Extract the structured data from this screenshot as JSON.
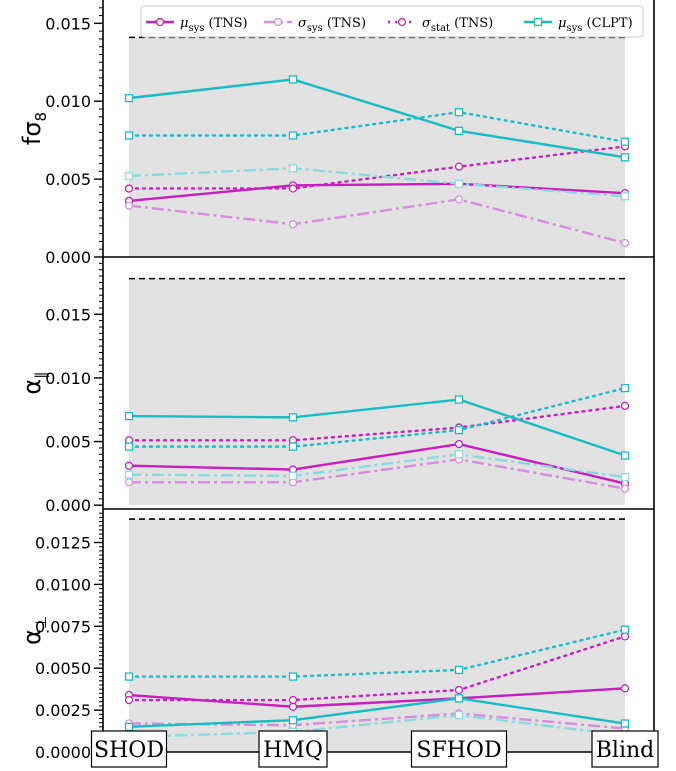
{
  "chart_data": {
    "type": "line",
    "categories": [
      "SHOD",
      "HMQ",
      "SFHOD",
      "Blind"
    ],
    "legend": [
      {
        "key": "mu_sys_tns",
        "symbol": "μ",
        "sub": "sys",
        "suffix": " (TNS)",
        "color": "#c71dc1",
        "dash": "solid",
        "alpha": 1.0
      },
      {
        "key": "sigma_sys_tns",
        "symbol": "σ",
        "sub": "sys",
        "suffix": " (TNS)",
        "color": "#d48edb",
        "dash": "dashdot",
        "alpha": 1.0
      },
      {
        "key": "sigma_stat_tns",
        "symbol": "σ",
        "sub": "stat",
        "suffix": " (TNS)",
        "color": "#c71dc1",
        "dash": "dotted",
        "alpha": 1.0
      },
      {
        "key": "mu_sys_clpt",
        "symbol": "μ",
        "sub": "sys",
        "suffix": " (CLPT)",
        "color": "#1abcc4",
        "dash": "solid",
        "alpha": 1.0
      }
    ],
    "panels": [
      {
        "ylabel_base": "fσ",
        "ylabel_sub": "8",
        "ylim": [
          0.0,
          0.0165
        ],
        "yticks": [
          0.0,
          0.005,
          0.01,
          0.015
        ],
        "ytick_labels": [
          "0.000",
          "0.005",
          "0.010",
          "0.015"
        ],
        "reference_line": 0.0141,
        "shade_top": 0.0141,
        "series": [
          {
            "key": "mu_sys_tns",
            "values": [
              0.0036,
              0.0046,
              0.0047,
              0.0041
            ]
          },
          {
            "key": "sigma_sys_tns",
            "values": [
              0.0033,
              0.0021,
              0.0037,
              0.0009
            ]
          },
          {
            "key": "sigma_stat_tns",
            "values": [
              0.0044,
              0.0044,
              0.0058,
              0.0071
            ]
          },
          {
            "key": "mu_sys_clpt",
            "values": [
              0.0102,
              0.0114,
              0.0081,
              0.0064
            ]
          },
          {
            "key": "sigma_sys_clpt",
            "color": "#8bd9dd",
            "dash": "dashdot",
            "values": [
              0.0052,
              0.0057,
              0.0047,
              0.0039
            ]
          },
          {
            "key": "sigma_stat_clpt",
            "color": "#1abcc4",
            "dash": "dotted",
            "values": [
              0.0078,
              0.0078,
              0.0093,
              0.0074
            ]
          }
        ]
      },
      {
        "ylabel_base": "α",
        "ylabel_sub": "∥",
        "ylim": [
          -0.0003,
          0.0195
        ],
        "yticks": [
          0.0,
          0.005,
          0.01,
          0.015
        ],
        "ytick_labels": [
          "0.000",
          "0.005",
          "0.010",
          "0.015"
        ],
        "reference_line": 0.0178,
        "shade_top": 0.0178,
        "series": [
          {
            "key": "mu_sys_tns",
            "values": [
              0.0031,
              0.0028,
              0.0048,
              0.0017
            ]
          },
          {
            "key": "sigma_sys_tns",
            "values": [
              0.0018,
              0.0018,
              0.0036,
              0.0013
            ]
          },
          {
            "key": "sigma_stat_tns",
            "values": [
              0.0051,
              0.0051,
              0.0061,
              0.0078
            ]
          },
          {
            "key": "mu_sys_clpt",
            "values": [
              0.007,
              0.0069,
              0.0083,
              0.0039
            ]
          },
          {
            "key": "sigma_sys_clpt",
            "color": "#8bd9dd",
            "dash": "dashdot",
            "values": [
              0.0024,
              0.0023,
              0.004,
              0.0022
            ]
          },
          {
            "key": "sigma_stat_clpt",
            "color": "#1abcc4",
            "dash": "dotted",
            "values": [
              0.0046,
              0.0046,
              0.0059,
              0.0092
            ]
          }
        ]
      },
      {
        "ylabel_base": "α",
        "ylabel_sub": "⊥",
        "ylim": [
          0.0,
          0.0145
        ],
        "yticks": [
          0.0,
          0.0025,
          0.005,
          0.0075,
          0.01,
          0.0125
        ],
        "ytick_labels": [
          "0.0000",
          "0.0025",
          "0.0050",
          "0.0075",
          "0.0100",
          "0.0125"
        ],
        "reference_line": 0.0139,
        "shade_top": 0.0139,
        "series": [
          {
            "key": "mu_sys_tns",
            "values": [
              0.0034,
              0.0027,
              0.0032,
              0.0038
            ]
          },
          {
            "key": "sigma_sys_tns",
            "values": [
              0.0017,
              0.0016,
              0.0023,
              0.0014
            ]
          },
          {
            "key": "sigma_stat_tns",
            "values": [
              0.0031,
              0.0031,
              0.0037,
              0.0069
            ]
          },
          {
            "key": "mu_sys_clpt",
            "values": [
              0.0015,
              0.0019,
              0.0032,
              0.0017
            ]
          },
          {
            "key": "sigma_sys_clpt",
            "color": "#8bd9dd",
            "dash": "dashdot",
            "values": [
              0.0009,
              0.0012,
              0.0022,
              0.001
            ]
          },
          {
            "key": "sigma_stat_clpt",
            "color": "#1abcc4",
            "dash": "dotted",
            "values": [
              0.0045,
              0.0045,
              0.0049,
              0.0073
            ]
          }
        ]
      }
    ],
    "colors": {
      "shade": "#e2e2e2",
      "reference": "#000000"
    }
  }
}
